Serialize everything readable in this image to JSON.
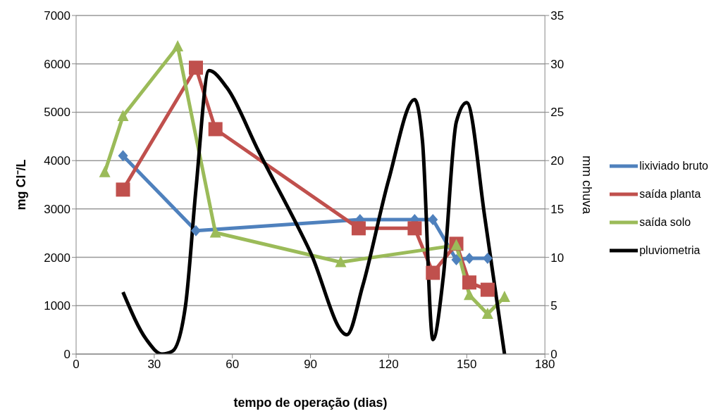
{
  "chart_data": {
    "type": "line",
    "xlabel": "tempo de operação  (dias)",
    "ylabel": "mg Cl⁻/L",
    "y2label": "mm  chuva",
    "xlim": [
      0,
      180
    ],
    "xticks": [
      0,
      30,
      60,
      90,
      120,
      150,
      180
    ],
    "ylim": [
      0,
      7000
    ],
    "yticks": [
      0,
      1000,
      2000,
      3000,
      4000,
      5000,
      6000,
      7000
    ],
    "y2lim": [
      0,
      35
    ],
    "y2ticks": [
      0,
      5,
      10,
      15,
      20,
      25,
      30,
      35
    ],
    "grid": "y",
    "legend": "right",
    "series": [
      {
        "name": "lixiviado bruto",
        "color": "#4f81bd",
        "marker": "diamond",
        "x": [
          18,
          46,
          109,
          130,
          137,
          146,
          151,
          158
        ],
        "values": [
          4100,
          2550,
          2780,
          2780,
          2780,
          1950,
          1980,
          1980
        ]
      },
      {
        "name": "saída planta",
        "color": "#c0504d",
        "marker": "square",
        "x": [
          18,
          46,
          53.5,
          108.5,
          130,
          137,
          146,
          151,
          158
        ],
        "values": [
          3400,
          5920,
          4650,
          2600,
          2600,
          1680,
          2280,
          1480,
          1330
        ]
      },
      {
        "name": "saída solo",
        "color": "#9bbb59",
        "marker": "triangle",
        "x": [
          11,
          18,
          39,
          53.5,
          101.6,
          146,
          151,
          158,
          164.5
        ],
        "values": [
          3760,
          4920,
          6360,
          2510,
          1900,
          2250,
          1220,
          830,
          1180
        ]
      },
      {
        "name": "pluviometria",
        "color": "#000000",
        "marker": "none",
        "axis": "y2",
        "x": [
          18,
          27,
          33,
          37,
          42,
          46,
          51,
          58,
          70,
          90,
          104,
          110,
          120,
          130,
          133,
          137,
          141,
          146,
          150,
          157,
          164.5
        ],
        "values": [
          6.4,
          1.5,
          0,
          0.3,
          5,
          17,
          29.3,
          27.5,
          21,
          10.5,
          2,
          7,
          18,
          26.3,
          22,
          1.5,
          8,
          24,
          26,
          14,
          0
        ]
      }
    ]
  }
}
